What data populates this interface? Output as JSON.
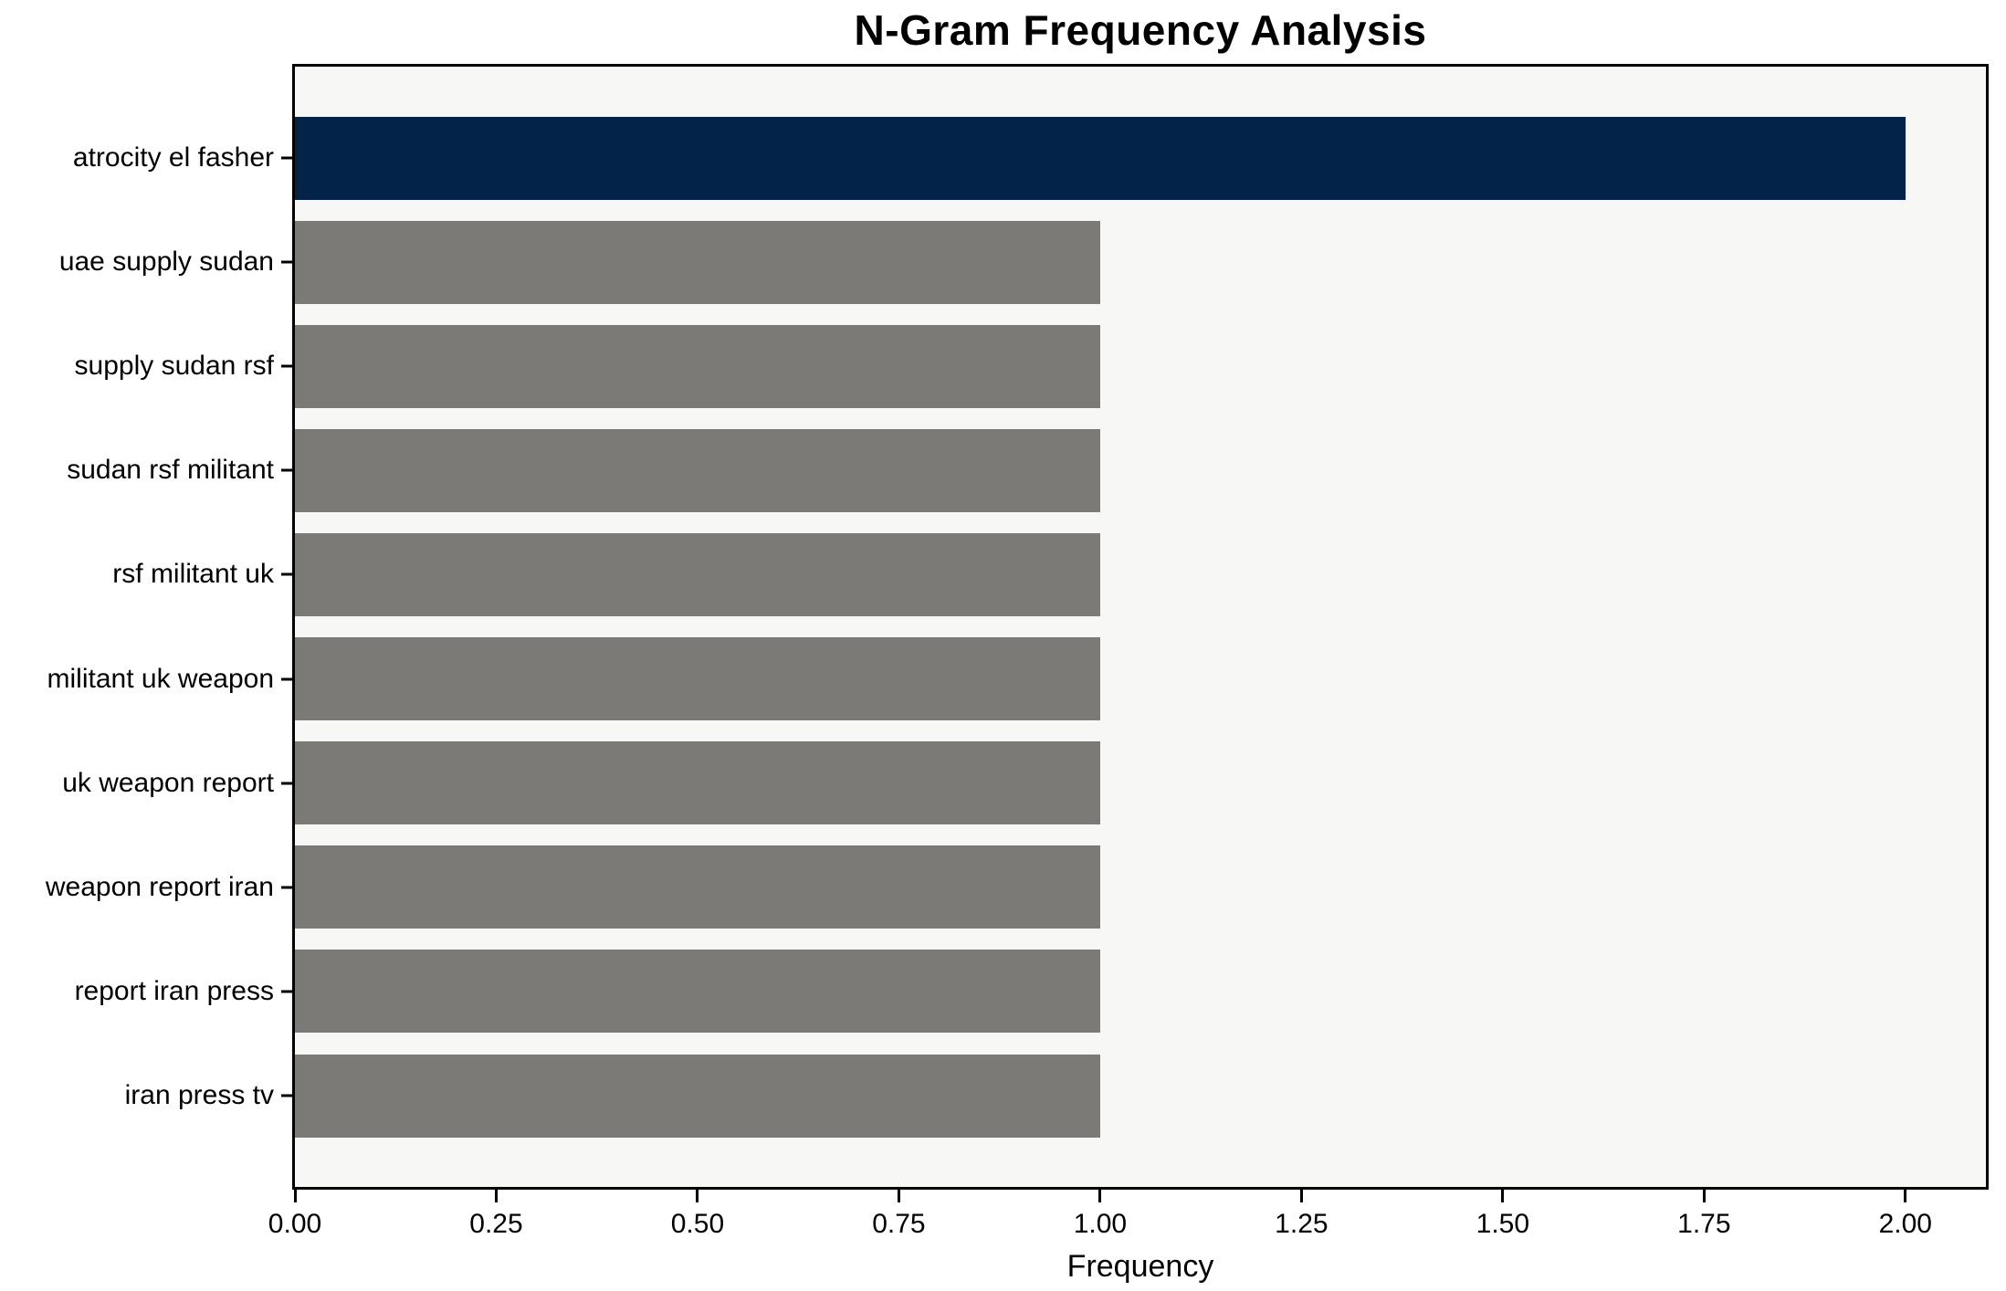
{
  "chart_data": {
    "type": "bar",
    "orientation": "horizontal",
    "title": "N-Gram Frequency Analysis",
    "xlabel": "Frequency",
    "ylabel": "",
    "categories": [
      "atrocity el fasher",
      "uae supply sudan",
      "supply sudan rsf",
      "sudan rsf militant",
      "rsf militant uk",
      "militant uk weapon",
      "uk weapon report",
      "weapon report iran",
      "report iran press",
      "iran press tv"
    ],
    "values": [
      2,
      1,
      1,
      1,
      1,
      1,
      1,
      1,
      1,
      1
    ],
    "bar_colors": [
      "#042349",
      "#7B7A77",
      "#7B7A77",
      "#7B7A77",
      "#7B7A77",
      "#7B7A77",
      "#7B7A77",
      "#7B7A77",
      "#7B7A77",
      "#7B7A77"
    ],
    "highlight_color": "#042349",
    "default_bar_color": "#7B7A77",
    "plot_background": "#F7F7F6",
    "figure_background": "#FFFFFF",
    "xlim": [
      0,
      2.1
    ],
    "xticks": [
      0.0,
      0.25,
      0.5,
      0.75,
      1.0,
      1.25,
      1.5,
      1.75,
      2.0
    ],
    "xtick_labels": [
      "0.00",
      "0.25",
      "0.50",
      "0.75",
      "1.00",
      "1.25",
      "1.50",
      "1.75",
      "2.00"
    ],
    "grid": false,
    "legend": null
  }
}
